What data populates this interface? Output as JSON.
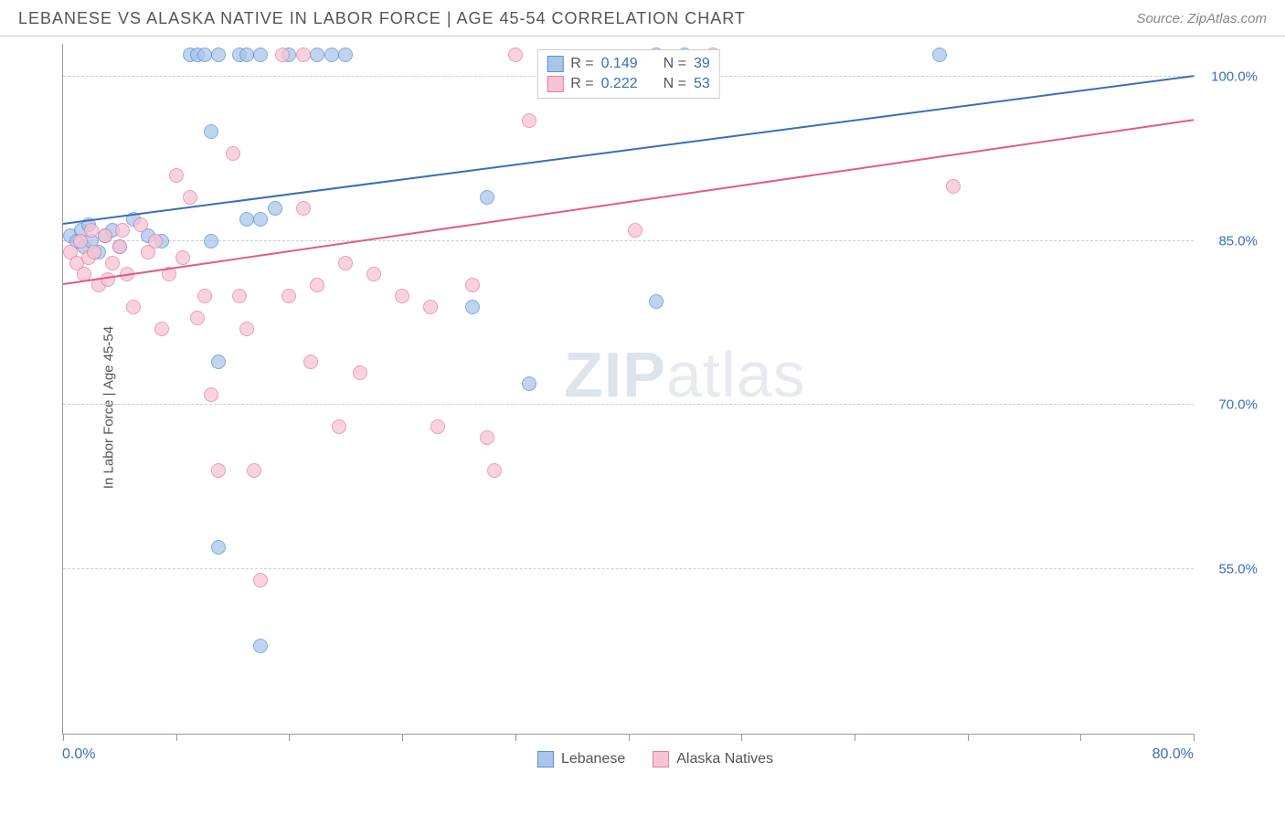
{
  "header": {
    "title": "LEBANESE VS ALASKA NATIVE IN LABOR FORCE | AGE 45-54 CORRELATION CHART",
    "source": "Source: ZipAtlas.com"
  },
  "chart": {
    "type": "scatter",
    "ylabel": "In Labor Force | Age 45-54",
    "xlim": [
      0,
      80
    ],
    "ylim": [
      40,
      103
    ],
    "xticks": [
      0,
      8,
      16,
      24,
      32,
      40,
      48,
      56,
      64,
      72,
      80
    ],
    "xaxis_labels": {
      "left": "0.0%",
      "right": "80.0%"
    },
    "yticks": [
      {
        "value": 55,
        "label": "55.0%"
      },
      {
        "value": 70,
        "label": "70.0%"
      },
      {
        "value": 85,
        "label": "85.0%"
      },
      {
        "value": 100,
        "label": "100.0%"
      }
    ],
    "grid_color": "#cccccc",
    "background_color": "#ffffff",
    "axis_color": "#999999",
    "marker_radius": 8,
    "marker_opacity": 0.75,
    "series": [
      {
        "name": "Lebanese",
        "color_fill": "#a9c6ea",
        "color_stroke": "#5b8fd6",
        "trend": {
          "x1": 0,
          "y1": 86.5,
          "x2": 80,
          "y2": 100,
          "color": "#3b6db8",
          "width": 2
        },
        "stats": {
          "r": "0.149",
          "n": "39"
        },
        "points": [
          [
            0.5,
            85.5
          ],
          [
            1,
            85
          ],
          [
            1.3,
            86
          ],
          [
            1.5,
            84.5
          ],
          [
            1.8,
            86.5
          ],
          [
            2,
            85
          ],
          [
            2.5,
            84
          ],
          [
            3,
            85.5
          ],
          [
            3.5,
            86
          ],
          [
            4,
            84.5
          ],
          [
            5,
            87
          ],
          [
            6,
            85.5
          ],
          [
            7,
            85
          ],
          [
            9,
            102
          ],
          [
            9.5,
            102
          ],
          [
            10,
            102
          ],
          [
            10.5,
            95
          ],
          [
            11,
            102
          ],
          [
            12.5,
            102
          ],
          [
            13,
            102
          ],
          [
            14,
            102
          ],
          [
            15,
            88
          ],
          [
            16,
            102
          ],
          [
            18,
            102
          ],
          [
            19,
            102
          ],
          [
            20,
            102
          ],
          [
            10.5,
            85
          ],
          [
            13,
            87
          ],
          [
            14,
            87
          ],
          [
            11,
            74
          ],
          [
            11,
            57
          ],
          [
            14,
            48
          ],
          [
            30,
            89
          ],
          [
            29,
            79
          ],
          [
            42,
            79.5
          ],
          [
            33,
            72
          ],
          [
            62,
            102
          ],
          [
            42,
            102
          ],
          [
            44,
            102
          ]
        ]
      },
      {
        "name": "Alaska Natives",
        "color_fill": "#f6c5d3",
        "color_stroke": "#e77ca0",
        "trend": {
          "x1": 0,
          "y1": 81,
          "x2": 80,
          "y2": 96,
          "color": "#e05b88",
          "width": 2
        },
        "stats": {
          "r": "0.222",
          "n": "53"
        },
        "points": [
          [
            0.5,
            84
          ],
          [
            1,
            83
          ],
          [
            1.2,
            85
          ],
          [
            1.5,
            82
          ],
          [
            1.8,
            83.5
          ],
          [
            2,
            86
          ],
          [
            2.2,
            84
          ],
          [
            2.5,
            81
          ],
          [
            3,
            85.5
          ],
          [
            3.2,
            81.5
          ],
          [
            3.5,
            83
          ],
          [
            4,
            84.5
          ],
          [
            4.2,
            86
          ],
          [
            4.5,
            82
          ],
          [
            5,
            79
          ],
          [
            5.5,
            86.5
          ],
          [
            6,
            84
          ],
          [
            6.5,
            85
          ],
          [
            7,
            77
          ],
          [
            7.5,
            82
          ],
          [
            8,
            91
          ],
          [
            8.5,
            83.5
          ],
          [
            9,
            89
          ],
          [
            9.5,
            78
          ],
          [
            10,
            80
          ],
          [
            10.5,
            71
          ],
          [
            11,
            64
          ],
          [
            12,
            93
          ],
          [
            12.5,
            80
          ],
          [
            13,
            77
          ],
          [
            13.5,
            64
          ],
          [
            14,
            54
          ],
          [
            16,
            80
          ],
          [
            17,
            88
          ],
          [
            17.5,
            74
          ],
          [
            18,
            81
          ],
          [
            19.5,
            68
          ],
          [
            20,
            83
          ],
          [
            21,
            73
          ],
          [
            22,
            82
          ],
          [
            24,
            80
          ],
          [
            26,
            79
          ],
          [
            26.5,
            68
          ],
          [
            29,
            81
          ],
          [
            30,
            67
          ],
          [
            30.5,
            64
          ],
          [
            32,
            102
          ],
          [
            33,
            96
          ],
          [
            40.5,
            86
          ],
          [
            46,
            102
          ],
          [
            63,
            90
          ],
          [
            17,
            102
          ],
          [
            15.5,
            102
          ]
        ]
      }
    ],
    "legend_top": [
      {
        "swatch_fill": "#a9c6ea",
        "swatch_stroke": "#5b8fd6",
        "r_label": "R =",
        "r_value": "0.149",
        "n_label": "N =",
        "n_value": "39"
      },
      {
        "swatch_fill": "#f6c5d3",
        "swatch_stroke": "#e77ca0",
        "r_label": "R =",
        "r_value": "0.222",
        "n_label": "N =",
        "n_value": "53"
      }
    ],
    "legend_bottom": [
      {
        "swatch_fill": "#a9c6ea",
        "swatch_stroke": "#5b8fd6",
        "label": "Lebanese"
      },
      {
        "swatch_fill": "#f6c5d3",
        "swatch_stroke": "#e77ca0",
        "label": "Alaska Natives"
      }
    ],
    "watermark": {
      "zip": "ZIP",
      "atlas": "atlas"
    },
    "title_fontsize": 18,
    "label_fontsize": 15,
    "tick_fontsize": 15,
    "tick_color": "#3b6db8"
  }
}
